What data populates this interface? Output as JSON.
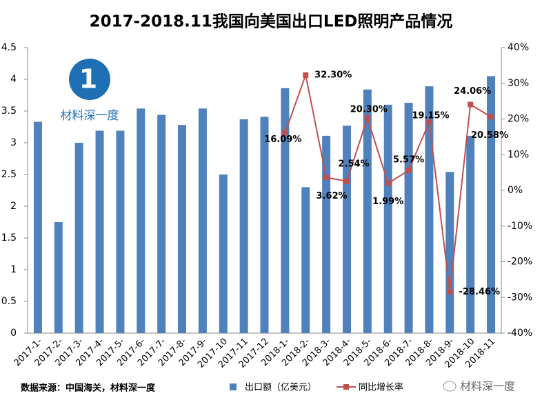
{
  "chart_data": {
    "type": "bar-line",
    "title": "2017-2018.11我国向美国出口LED照明产品情况",
    "categories": [
      "2017-1-",
      "2017-2-",
      "2017-3-",
      "2017-4-",
      "2017-5-",
      "2017-6-",
      "2017-7-",
      "2017-8-",
      "2017-9-",
      "2017-10",
      "2017-11",
      "2017-12",
      "2018-1-",
      "2018-2-",
      "2018-3-",
      "2018-4-",
      "2018-5-",
      "2018-6-",
      "2018-7-",
      "2018-8-",
      "2018-9-",
      "2018-10",
      "2018-11"
    ],
    "series": [
      {
        "name": "出口额（亿美元）",
        "color": "#4f81bd",
        "kind": "bar",
        "values": [
          3.33,
          1.75,
          3.0,
          3.19,
          3.19,
          3.54,
          3.44,
          3.28,
          3.54,
          2.5,
          3.37,
          3.41,
          3.86,
          2.3,
          3.11,
          3.27,
          3.84,
          3.6,
          3.63,
          3.89,
          2.54,
          3.11,
          4.05
        ]
      },
      {
        "name": "同比增长率",
        "color": "#c0504d",
        "kind": "line",
        "axis": "y2",
        "values": [
          null,
          null,
          null,
          null,
          null,
          null,
          null,
          null,
          null,
          null,
          null,
          null,
          16.09,
          32.3,
          3.62,
          2.54,
          20.3,
          1.99,
          5.57,
          19.15,
          -28.46,
          24.06,
          20.58
        ],
        "value_labels": [
          null,
          null,
          null,
          null,
          null,
          null,
          null,
          null,
          null,
          null,
          null,
          null,
          "16.09%",
          "32.30%",
          "3.62%",
          "2.54%",
          "20.30%",
          "1.99%",
          "5.57%",
          "19.15%",
          "-28.46%",
          "24.06%",
          "20.58%"
        ]
      }
    ],
    "ylim": [
      0,
      4.5
    ],
    "yticks": [
      0,
      0.5,
      1,
      1.5,
      2,
      2.5,
      3,
      3.5,
      4,
      4.5
    ],
    "y2lim": [
      -40,
      40
    ],
    "y2ticks": [
      {
        "value": -40,
        "label": "-40%"
      },
      {
        "value": -30,
        "label": "-30%"
      },
      {
        "value": -20,
        "label": "-20%"
      },
      {
        "value": -10,
        "label": "-10%"
      },
      {
        "value": 0,
        "label": "0%"
      },
      {
        "value": 10,
        "label": "10%"
      },
      {
        "value": 20,
        "label": "20%"
      },
      {
        "value": 30,
        "label": "30%"
      },
      {
        "value": 40,
        "label": "40%"
      }
    ],
    "source": "数据来源：中国海关，材料深一度",
    "logo_text": "材料深一度",
    "watermark": "材料深一度"
  }
}
